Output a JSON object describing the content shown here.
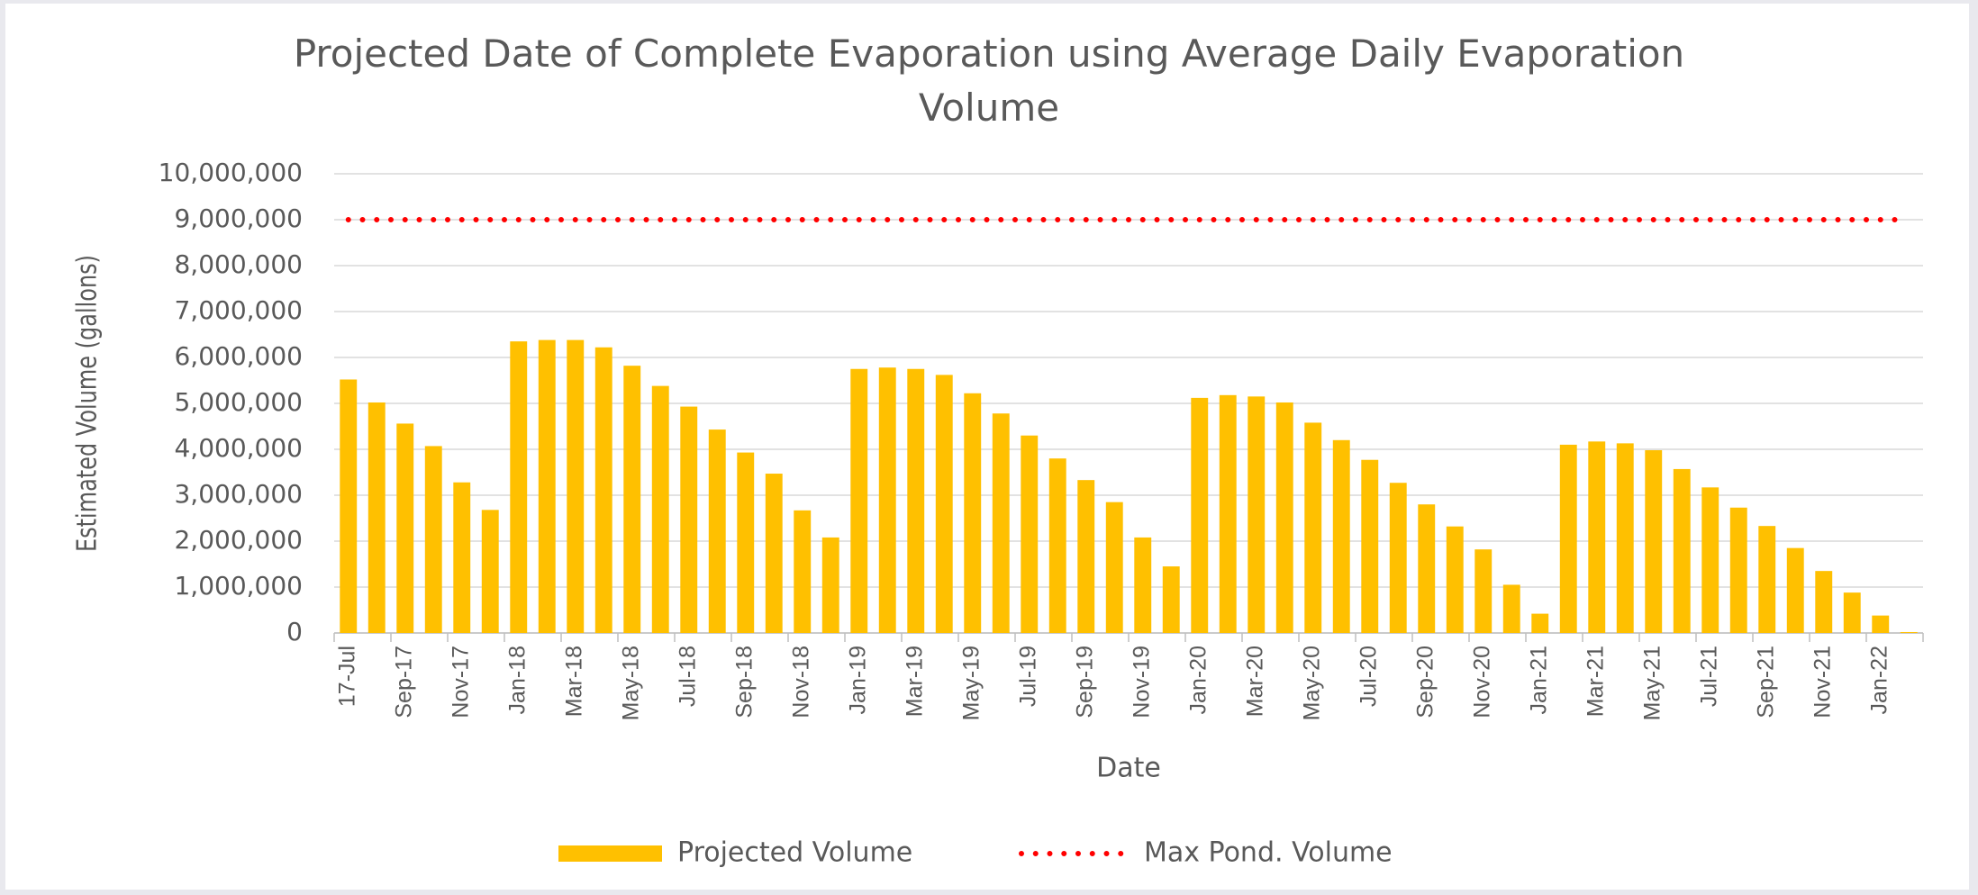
{
  "chart_data": {
    "type": "bar",
    "title": "Projected Date of Complete Evaporation using Average Daily Evaporation Volume",
    "x_label": "Date",
    "y_label": "Estimated Volume (gallons)",
    "categories": [
      "17-Jul",
      null,
      "Sep-17",
      null,
      "Nov-17",
      null,
      "Jan-18",
      null,
      "Mar-18",
      null,
      "May-18",
      null,
      "Jul-18",
      null,
      "Sep-18",
      null,
      "Nov-18",
      null,
      "Jan-19",
      null,
      "Mar-19",
      null,
      "May-19",
      null,
      "Jul-19",
      null,
      "Sep-19",
      null,
      "Nov-19",
      null,
      "Jan-20",
      null,
      "Mar-20",
      null,
      "May-20",
      null,
      "Jul-20",
      null,
      "Sep-20",
      null,
      "Nov-20",
      null,
      "Jan-21",
      null,
      "Mar-21",
      null,
      "May-21",
      null,
      "Jul-21",
      null,
      "Sep-21",
      null,
      "Nov-21",
      null,
      "Jan-22",
      null
    ],
    "series": [
      {
        "name": "Projected Volume",
        "color": "#ffc000",
        "type": "bar",
        "values": [
          5520000,
          5020000,
          4560000,
          4070000,
          3280000,
          2680000,
          6350000,
          6380000,
          6380000,
          6220000,
          5820000,
          5380000,
          4930000,
          4430000,
          3930000,
          3470000,
          2670000,
          2080000,
          5750000,
          5780000,
          5750000,
          5620000,
          5220000,
          4780000,
          4300000,
          3800000,
          3330000,
          2850000,
          2080000,
          1450000,
          5120000,
          5180000,
          5150000,
          5020000,
          4580000,
          4200000,
          3770000,
          3270000,
          2800000,
          2320000,
          1820000,
          1050000,
          420000,
          4100000,
          4170000,
          4130000,
          3980000,
          3570000,
          3170000,
          2730000,
          2330000,
          1850000,
          1350000,
          880000,
          380000,
          20000
        ]
      },
      {
        "name": "Max Pond. Volume",
        "color": "#ff0000",
        "type": "line",
        "values": [
          9000000,
          9000000,
          9000000,
          9000000,
          9000000,
          9000000,
          9000000,
          9000000,
          9000000,
          9000000,
          9000000,
          9000000,
          9000000,
          9000000,
          9000000,
          9000000,
          9000000,
          9000000,
          9000000,
          9000000,
          9000000,
          9000000,
          9000000,
          9000000,
          9000000,
          9000000,
          9000000,
          9000000,
          9000000,
          9000000,
          9000000,
          9000000,
          9000000,
          9000000,
          9000000,
          9000000,
          9000000,
          9000000,
          9000000,
          9000000,
          9000000,
          9000000,
          9000000,
          9000000,
          9000000,
          9000000,
          9000000,
          9000000,
          9000000,
          9000000,
          9000000,
          9000000,
          9000000,
          9000000,
          9000000,
          9000000
        ]
      }
    ],
    "ylim": [
      0,
      10000000
    ],
    "yticks": [
      0,
      {
        "value": 1000000,
        "label": "1,000,000"
      },
      {
        "value": 2000000,
        "label": "2,000,000"
      },
      {
        "value": 3000000,
        "label": "3,000,000"
      },
      {
        "value": 4000000,
        "label": "4,000,000"
      },
      {
        "value": 5000000,
        "label": "5,000,000"
      },
      {
        "value": 6000000,
        "label": "6,000,000"
      },
      {
        "value": 7000000,
        "label": "7,000,000"
      },
      {
        "value": 8000000,
        "label": "8,000,000"
      },
      {
        "value": 9000000,
        "label": "9,000,000"
      },
      {
        "value": 10000000,
        "label": "10,000,000"
      }
    ],
    "grid": true,
    "legend": "bottom"
  }
}
